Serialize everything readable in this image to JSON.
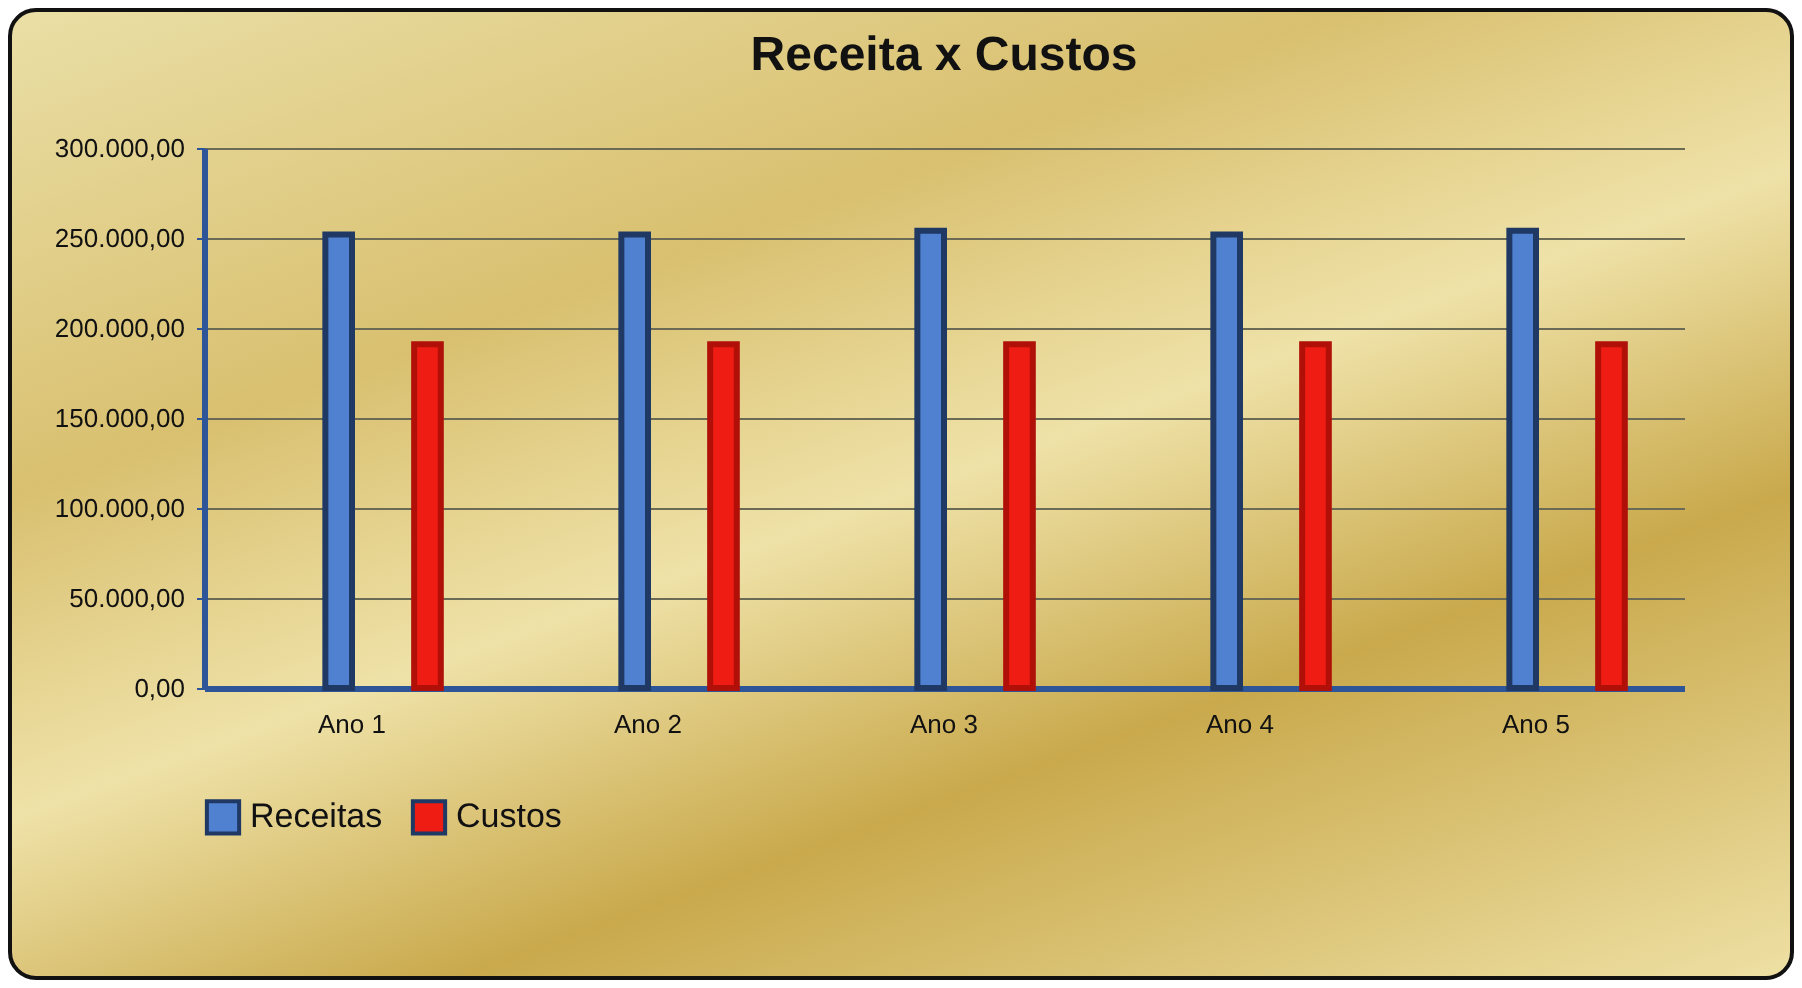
{
  "chart_data": {
    "type": "bar",
    "title": "Receita x Custos",
    "categories": [
      "Ano 1",
      "Ano 2",
      "Ano 3",
      "Ano 4",
      "Ano 5"
    ],
    "series": [
      {
        "name": "Receitas",
        "color": "#4f81d0",
        "values": [
          252000,
          252000,
          254000,
          252000,
          254000
        ]
      },
      {
        "name": "Custos",
        "color": "#ee1c12",
        "values": [
          191000,
          191000,
          191000,
          191000,
          191000
        ]
      }
    ],
    "ylim": [
      0,
      300000
    ],
    "yticks": [
      {
        "value": 0,
        "label": "0,00"
      },
      {
        "value": 50000,
        "label": "50.000,00"
      },
      {
        "value": 100000,
        "label": "100.000,00"
      },
      {
        "value": 150000,
        "label": "150.000,00"
      },
      {
        "value": 200000,
        "label": "200.000,00"
      },
      {
        "value": 250000,
        "label": "250.000,00"
      },
      {
        "value": 300000,
        "label": "300.000,00"
      }
    ],
    "grid": "y",
    "legend": "bottom"
  }
}
